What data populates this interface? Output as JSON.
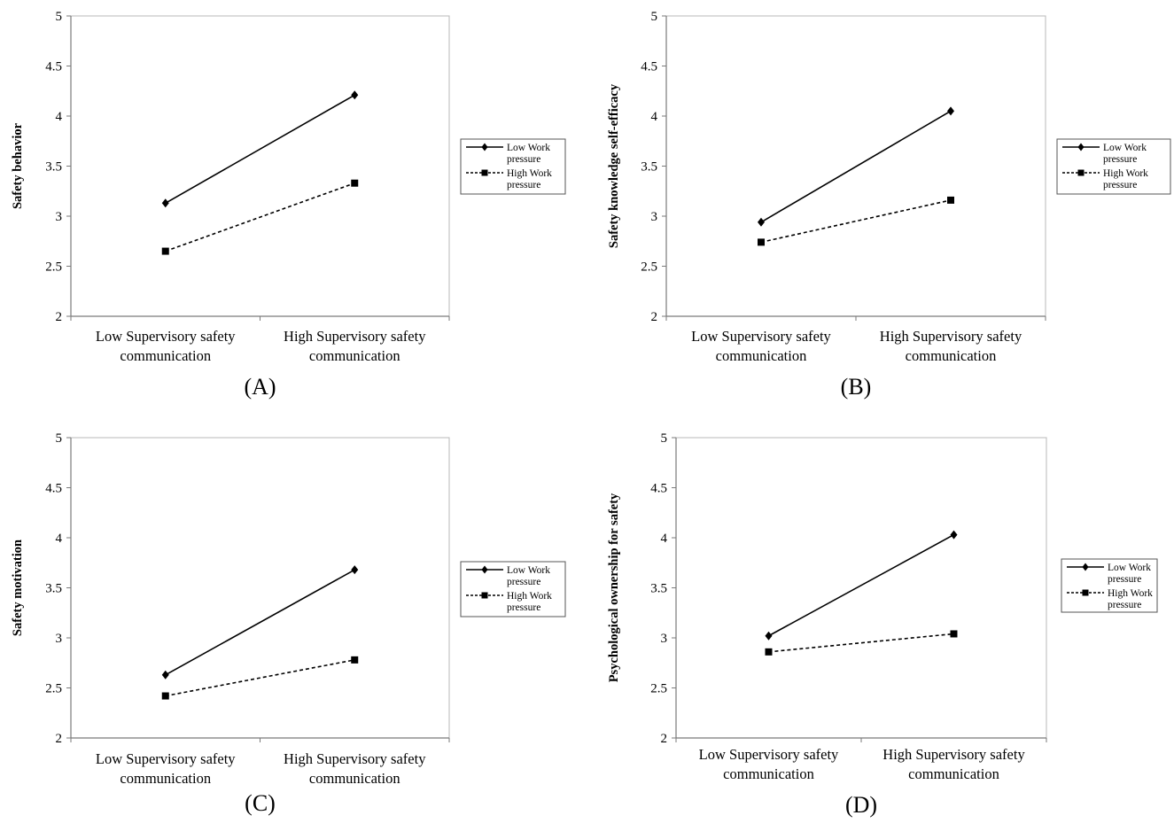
{
  "figure": {
    "line_color": "#000000",
    "background": "#ffffff"
  },
  "chart_data": [
    {
      "type": "line",
      "panel_label": "(A)",
      "ylabel": "Safety behavior",
      "categories": [
        "Low Supervisory safety communication",
        "High Supervisory safety communication"
      ],
      "category_lines": [
        [
          "Low Supervisory safety",
          "communication"
        ],
        [
          "High Supervisory safety",
          "communication"
        ]
      ],
      "ylim": [
        2,
        5
      ],
      "yticks": [
        "2",
        "2.5",
        "3",
        "3.5",
        "4",
        "4.5",
        "5"
      ],
      "grid": false,
      "legend_position": "right",
      "series": [
        {
          "name": "Low Work pressure",
          "name_lines": [
            "Low Work",
            "pressure"
          ],
          "marker": "diamond",
          "line_style": "solid",
          "values": [
            3.13,
            4.21
          ]
        },
        {
          "name": "High Work pressure",
          "name_lines": [
            "High Work",
            "pressure"
          ],
          "marker": "square",
          "line_style": "dashed",
          "values": [
            2.65,
            3.33
          ]
        }
      ]
    },
    {
      "type": "line",
      "panel_label": "(B)",
      "ylabel": "Safety knowledge self-efficacy",
      "categories": [
        "Low Supervisory safety communication",
        "High Supervisory safety communication"
      ],
      "category_lines": [
        [
          "Low Supervisory safety",
          "communication"
        ],
        [
          "High Supervisory safety",
          "communication"
        ]
      ],
      "ylim": [
        2,
        5
      ],
      "yticks": [
        "2",
        "2.5",
        "3",
        "3.5",
        "4",
        "4.5",
        "5"
      ],
      "grid": false,
      "legend_position": "right",
      "series": [
        {
          "name": "Low Work pressure",
          "name_lines": [
            "Low Work",
            "pressure"
          ],
          "marker": "diamond",
          "line_style": "solid",
          "values": [
            2.94,
            4.05
          ]
        },
        {
          "name": "High Work pressure",
          "name_lines": [
            "High Work",
            "pressure"
          ],
          "marker": "square",
          "line_style": "dashed",
          "values": [
            2.74,
            3.16
          ]
        }
      ]
    },
    {
      "type": "line",
      "panel_label": "(C)",
      "ylabel": "Safety motivation",
      "categories": [
        "Low Supervisory safety communication",
        "High Supervisory safety communication"
      ],
      "category_lines": [
        [
          "Low Supervisory safety",
          "communication"
        ],
        [
          "High Supervisory safety",
          "communication"
        ]
      ],
      "ylim": [
        2,
        5
      ],
      "yticks": [
        "2",
        "2.5",
        "3",
        "3.5",
        "4",
        "4.5",
        "5"
      ],
      "grid": false,
      "legend_position": "right",
      "series": [
        {
          "name": "Low Work pressure",
          "name_lines": [
            "Low Work",
            "pressure"
          ],
          "marker": "diamond",
          "line_style": "solid",
          "values": [
            2.63,
            3.68
          ]
        },
        {
          "name": "High Work pressure",
          "name_lines": [
            "High Work",
            "pressure"
          ],
          "marker": "square",
          "line_style": "dashed",
          "values": [
            2.42,
            2.78
          ]
        }
      ]
    },
    {
      "type": "line",
      "panel_label": "(D)",
      "ylabel": "Psychological ownership for safety",
      "categories": [
        "Low Supervisory safety communication",
        "High Supervisory safety communication"
      ],
      "category_lines": [
        [
          "Low Supervisory safety",
          "communication"
        ],
        [
          "High Supervisory safety",
          "communication"
        ]
      ],
      "ylim": [
        2,
        5
      ],
      "yticks": [
        "2",
        "2.5",
        "3",
        "3.5",
        "4",
        "4.5",
        "5"
      ],
      "grid": false,
      "legend_position": "right",
      "series": [
        {
          "name": "Low Work pressure",
          "name_lines": [
            "Low Work",
            "pressure"
          ],
          "marker": "diamond",
          "line_style": "solid",
          "values": [
            3.02,
            4.03
          ]
        },
        {
          "name": "High Work pressure",
          "name_lines": [
            "High Work",
            "pressure"
          ],
          "marker": "square",
          "line_style": "dashed",
          "values": [
            2.86,
            3.04
          ]
        }
      ]
    }
  ]
}
